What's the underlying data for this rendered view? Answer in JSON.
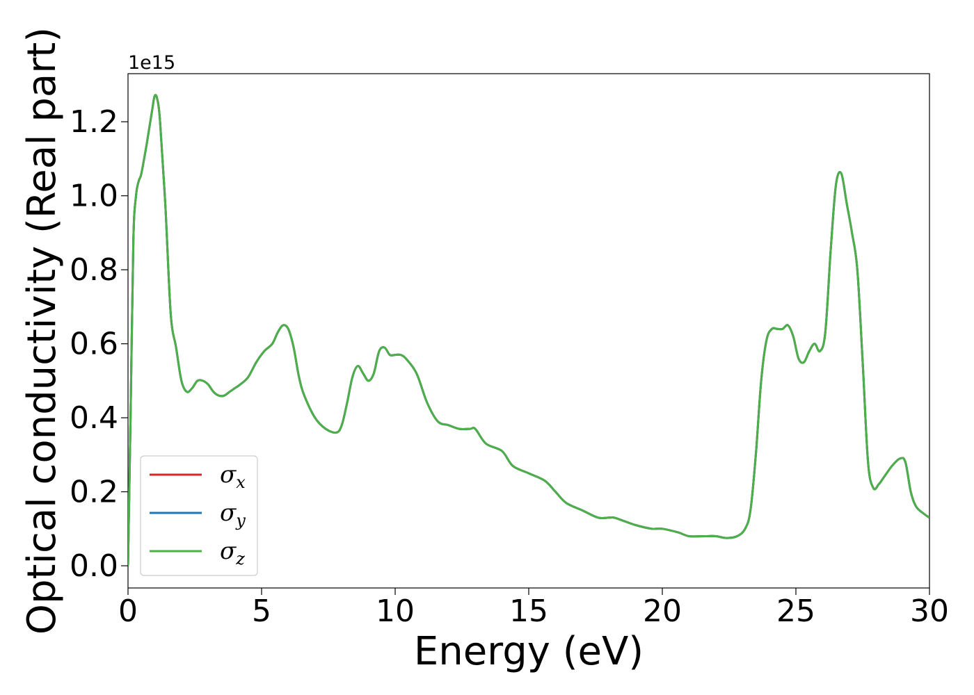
{
  "chart_data": {
    "type": "line",
    "title": "",
    "xlabel": "Energy (eV)",
    "ylabel": "Optical conductivity (Real part)",
    "y_offset_label": "1e15",
    "y_scale_factor": 1000000000000000.0,
    "xlim": [
      0,
      30
    ],
    "ylim": [
      -0.06,
      1.33
    ],
    "xticks": [
      0,
      5,
      10,
      15,
      20,
      25,
      30
    ],
    "xtick_labels": [
      "0",
      "5",
      "10",
      "15",
      "20",
      "25",
      "30"
    ],
    "yticks": [
      0.0,
      0.2,
      0.4,
      0.6,
      0.8,
      1.0,
      1.2
    ],
    "ytick_labels": [
      "0.0",
      "0.2",
      "0.4",
      "0.6",
      "0.8",
      "1.0",
      "1.2"
    ],
    "grid": false,
    "legend_position": "lower-left",
    "series": [
      {
        "name": "σx",
        "symbol": "σ",
        "subscript": "x",
        "color": "#d62728"
      },
      {
        "name": "σy",
        "symbol": "σ",
        "subscript": "y",
        "color": "#1f77b4"
      },
      {
        "name": "σz",
        "symbol": "σ",
        "subscript": "z",
        "color": "#4daf4a"
      }
    ],
    "x": [
      0,
      0.1,
      0.2,
      0.3,
      0.4,
      0.5,
      0.7,
      0.9,
      1.0,
      1.1,
      1.2,
      1.4,
      1.6,
      1.8,
      2.0,
      2.2,
      2.4,
      2.6,
      2.8,
      3.0,
      3.2,
      3.4,
      3.6,
      3.8,
      4.0,
      4.2,
      4.5,
      4.8,
      5.1,
      5.4,
      5.6,
      5.8,
      6.0,
      6.2,
      6.4,
      6.6,
      7.0,
      7.4,
      7.8,
      8.0,
      8.2,
      8.4,
      8.6,
      8.8,
      9.0,
      9.2,
      9.4,
      9.6,
      9.8,
      10.0,
      10.2,
      10.4,
      10.8,
      11.2,
      11.6,
      12.0,
      12.4,
      12.8,
      13.0,
      13.4,
      14.0,
      14.4,
      15.0,
      15.6,
      16.0,
      16.4,
      17.0,
      17.6,
      18.0,
      18.2,
      18.6,
      19.0,
      19.6,
      20.0,
      20.6,
      21.0,
      21.6,
      22.0,
      22.4,
      22.8,
      23.1,
      23.3,
      23.5,
      23.7,
      23.9,
      24.1,
      24.3,
      24.5,
      24.7,
      24.9,
      25.1,
      25.3,
      25.5,
      25.7,
      25.9,
      26.1,
      26.3,
      26.5,
      26.7,
      26.9,
      27.1,
      27.3,
      27.5,
      27.7,
      27.9,
      28.1,
      28.3,
      28.6,
      28.9,
      29.1,
      29.3,
      29.5,
      29.8,
      30.0
    ],
    "y": [
      0.0,
      0.42,
      0.88,
      1.0,
      1.04,
      1.06,
      1.14,
      1.23,
      1.27,
      1.26,
      1.2,
      0.97,
      0.68,
      0.59,
      0.5,
      0.47,
      0.48,
      0.5,
      0.5,
      0.49,
      0.47,
      0.46,
      0.46,
      0.47,
      0.48,
      0.49,
      0.51,
      0.55,
      0.58,
      0.6,
      0.63,
      0.65,
      0.64,
      0.59,
      0.51,
      0.46,
      0.4,
      0.37,
      0.36,
      0.38,
      0.44,
      0.51,
      0.54,
      0.52,
      0.5,
      0.52,
      0.58,
      0.59,
      0.57,
      0.57,
      0.57,
      0.56,
      0.52,
      0.44,
      0.39,
      0.38,
      0.37,
      0.37,
      0.37,
      0.33,
      0.31,
      0.27,
      0.25,
      0.23,
      0.2,
      0.17,
      0.15,
      0.13,
      0.13,
      0.13,
      0.12,
      0.11,
      0.1,
      0.1,
      0.09,
      0.08,
      0.08,
      0.08,
      0.075,
      0.08,
      0.1,
      0.15,
      0.3,
      0.5,
      0.61,
      0.64,
      0.64,
      0.64,
      0.65,
      0.62,
      0.56,
      0.55,
      0.58,
      0.6,
      0.58,
      0.63,
      0.85,
      1.03,
      1.06,
      0.98,
      0.9,
      0.8,
      0.55,
      0.28,
      0.21,
      0.22,
      0.24,
      0.27,
      0.29,
      0.28,
      0.2,
      0.16,
      0.14,
      0.13
    ]
  }
}
